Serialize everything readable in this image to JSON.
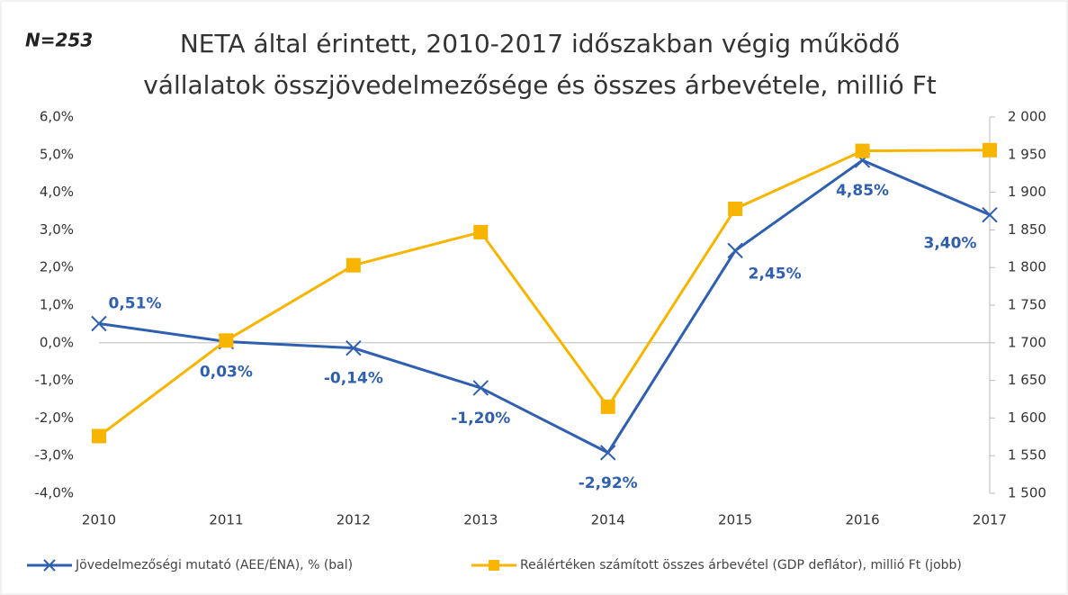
{
  "chart_data": {
    "type": "line",
    "annotation": "N=253",
    "title": [
      "NETA által érintett,  2010-2017 időszakban végig működő",
      "vállalatok összjövedelmezősége és összes árbevétele, millió Ft"
    ],
    "categories": [
      "2010",
      "2011",
      "2012",
      "2013",
      "2014",
      "2015",
      "2016",
      "2017"
    ],
    "series": [
      {
        "name": "Jövedelmezőségi mutató (AEE/ÉNA), % (bal)",
        "color": "#2e5fb0",
        "marker": "x",
        "values": [
          0.51,
          0.03,
          -0.14,
          -1.2,
          -2.92,
          2.45,
          4.85,
          3.4
        ],
        "value_labels": [
          "0,51%",
          "0,03%",
          "-0,14%",
          "-1,20%",
          "-2,92%",
          "2,45%",
          "4,85%",
          "3,40%"
        ]
      },
      {
        "name": "Reálértéken számított összes árbevétel (GDP deflátor), millió Ft (jobb)",
        "color": "#f7b500",
        "marker": "square",
        "axis": "y2",
        "values": [
          1576,
          1703,
          1803,
          1847,
          1615,
          1878,
          1955,
          1956
        ]
      }
    ],
    "ylim": [
      -4,
      6
    ],
    "yticks": [
      {
        "value": -4,
        "label": "-4,0%"
      },
      {
        "value": -3,
        "label": "-3,0%"
      },
      {
        "value": -2,
        "label": "-2,0%"
      },
      {
        "value": -1,
        "label": "-1,0%"
      },
      {
        "value": 0,
        "label": "0,0%"
      },
      {
        "value": 1,
        "label": "1,0%"
      },
      {
        "value": 2,
        "label": "2,0%"
      },
      {
        "value": 3,
        "label": "3,0%"
      },
      {
        "value": 4,
        "label": "4,0%"
      },
      {
        "value": 5,
        "label": "5,0%"
      },
      {
        "value": 6,
        "label": "6,0%"
      }
    ],
    "y2lim": [
      1500,
      2000
    ],
    "y2ticks": [
      {
        "value": 1500,
        "label": "1 500"
      },
      {
        "value": 1550,
        "label": "1 550"
      },
      {
        "value": 1600,
        "label": "1 600"
      },
      {
        "value": 1650,
        "label": "1 650"
      },
      {
        "value": 1700,
        "label": "1 700"
      },
      {
        "value": 1750,
        "label": "1 750"
      },
      {
        "value": 1800,
        "label": "1 800"
      },
      {
        "value": 1850,
        "label": "1 850"
      },
      {
        "value": 1900,
        "label": "1 900"
      },
      {
        "value": 1950,
        "label": "1 950"
      },
      {
        "value": 2000,
        "label": "2 000"
      }
    ],
    "grid": false,
    "legend": "bottom"
  }
}
